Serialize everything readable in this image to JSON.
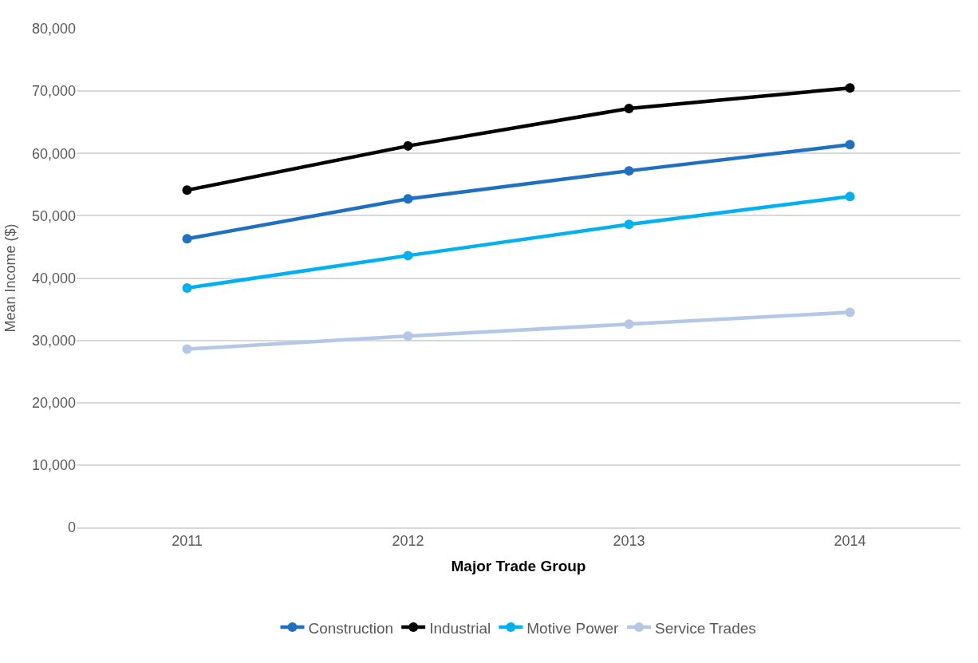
{
  "chart_data": {
    "type": "line",
    "xlabel": "Major Trade Group",
    "ylabel": "Mean Income ($)",
    "categories": [
      "2011",
      "2012",
      "2013",
      "2014"
    ],
    "series": [
      {
        "name": "Construction",
        "color": "#1f70c1",
        "values": [
          46300,
          52700,
          57200,
          61400
        ]
      },
      {
        "name": "Industrial",
        "color": "#000000",
        "values": [
          54100,
          61200,
          67200,
          70500
        ]
      },
      {
        "name": "Motive Power",
        "color": "#00b0f0",
        "values": [
          38400,
          43600,
          48600,
          53100
        ]
      },
      {
        "name": "Service Trades",
        "color": "#b4c7e7",
        "values": [
          28600,
          30700,
          32600,
          34500
        ]
      }
    ],
    "ylim": [
      0,
      80000
    ],
    "yticks": [
      {
        "value": 0,
        "label": "0"
      },
      {
        "value": 10000,
        "label": "10,000"
      },
      {
        "value": 20000,
        "label": "20,000"
      },
      {
        "value": 30000,
        "label": "30,000"
      },
      {
        "value": 40000,
        "label": "40,000"
      },
      {
        "value": 50000,
        "label": "50,000"
      },
      {
        "value": 60000,
        "label": "60,000"
      },
      {
        "value": 70000,
        "label": "70,000"
      },
      {
        "value": 80000,
        "label": "80,000"
      }
    ],
    "grid": "y",
    "legend": "bottom",
    "marker": "circle",
    "line_style": "solid"
  }
}
